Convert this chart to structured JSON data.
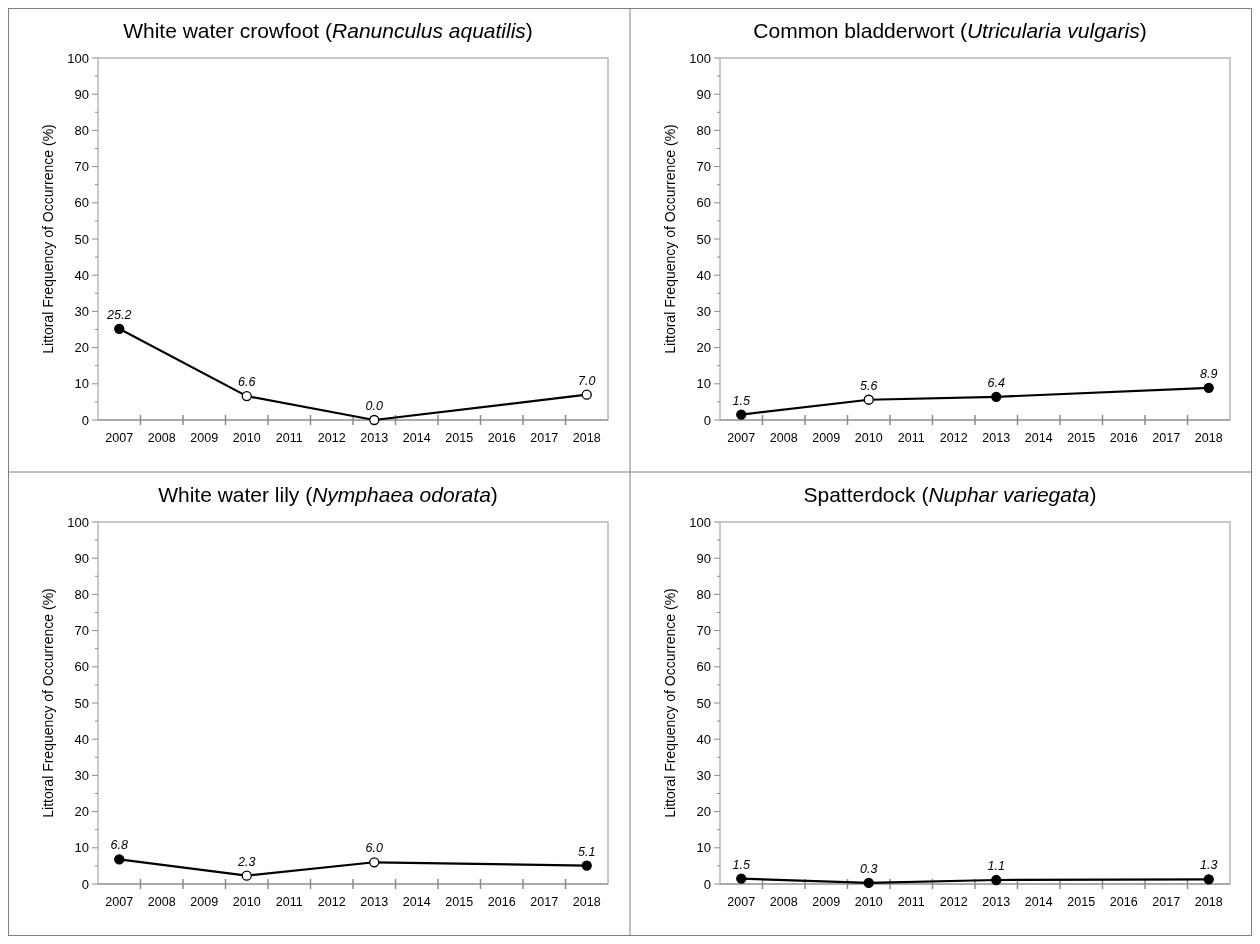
{
  "chart_data": [
    {
      "type": "line",
      "title": "White water crowfoot (Ranunculus aquatilis)",
      "ylabel": "Littoral Frequency of Occurrence (%)",
      "categories": [
        "2007",
        "2008",
        "2009",
        "2010",
        "2011",
        "2012",
        "2013",
        "2014",
        "2015",
        "2016",
        "2017",
        "2018"
      ],
      "series": [
        {
          "color": "#000000",
          "colors": [
            "#000000",
            null,
            null,
            "#ffffff",
            null,
            null,
            "#ffffff",
            null,
            null,
            null,
            null,
            "#ffffff"
          ],
          "values": [
            25.2,
            null,
            null,
            6.6,
            null,
            null,
            0,
            null,
            null,
            null,
            null,
            7.0
          ],
          "value_labels": [
            "25.2",
            null,
            null,
            "6.6",
            null,
            null,
            "0.0",
            null,
            null,
            null,
            null,
            "7.0"
          ]
        }
      ],
      "ylim": [
        0,
        100
      ],
      "yticks": [
        0,
        {
          "value": 5,
          "label": null
        },
        10,
        {
          "value": 15,
          "label": null
        },
        20,
        {
          "value": 25,
          "label": null
        },
        30,
        {
          "value": 35,
          "label": null
        },
        40,
        {
          "value": 45,
          "label": null
        },
        50,
        {
          "value": 55,
          "label": null
        },
        60,
        {
          "value": 65,
          "label": null
        },
        70,
        {
          "value": 75,
          "label": null
        },
        80,
        {
          "value": 85,
          "label": null
        },
        90,
        {
          "value": 95,
          "label": null
        },
        100
      ],
      "marker": "circle",
      "grid": false
    },
    {
      "type": "line",
      "title": "Common bladderwort (Utricularia vulgaris)",
      "ylabel": "Littoral Frequency of Occurrence (%)",
      "categories": [
        "2007",
        "2008",
        "2009",
        "2010",
        "2011",
        "2012",
        "2013",
        "2014",
        "2015",
        "2016",
        "2017",
        "2018"
      ],
      "series": [
        {
          "color": "#000000",
          "colors": [
            "#000000",
            null,
            null,
            "#ffffff",
            null,
            null,
            "#000000",
            null,
            null,
            null,
            null,
            "#000000"
          ],
          "values": [
            1.5,
            null,
            null,
            5.6,
            null,
            null,
            6.4,
            null,
            null,
            null,
            null,
            8.9
          ],
          "value_labels": [
            "1.5",
            null,
            null,
            "5.6",
            null,
            null,
            "6.4",
            null,
            null,
            null,
            null,
            "8.9"
          ]
        }
      ],
      "ylim": [
        0,
        100
      ],
      "yticks": [
        0,
        {
          "value": 5,
          "label": null
        },
        10,
        {
          "value": 15,
          "label": null
        },
        20,
        {
          "value": 25,
          "label": null
        },
        30,
        {
          "value": 35,
          "label": null
        },
        40,
        {
          "value": 45,
          "label": null
        },
        50,
        {
          "value": 55,
          "label": null
        },
        60,
        {
          "value": 65,
          "label": null
        },
        70,
        {
          "value": 75,
          "label": null
        },
        80,
        {
          "value": 85,
          "label": null
        },
        90,
        {
          "value": 95,
          "label": null
        },
        100
      ],
      "marker": "circle",
      "grid": false
    },
    {
      "type": "line",
      "title": "White water lily (Nymphaea odorata)",
      "ylabel": "Littoral Frequency of Occurrence (%)",
      "categories": [
        "2007",
        "2008",
        "2009",
        "2010",
        "2011",
        "2012",
        "2013",
        "2014",
        "2015",
        "2016",
        "2017",
        "2018"
      ],
      "series": [
        {
          "color": "#000000",
          "colors": [
            "#000000",
            null,
            null,
            "#ffffff",
            null,
            null,
            "#ffffff",
            null,
            null,
            null,
            null,
            "#000000"
          ],
          "values": [
            6.8,
            null,
            null,
            2.3,
            null,
            null,
            6.0,
            null,
            null,
            null,
            null,
            5.1
          ],
          "value_labels": [
            "6.8",
            null,
            null,
            "2.3",
            null,
            null,
            "6.0",
            null,
            null,
            null,
            null,
            "5.1"
          ]
        }
      ],
      "ylim": [
        0,
        100
      ],
      "yticks": [
        0,
        {
          "value": 5,
          "label": null
        },
        10,
        {
          "value": 15,
          "label": null
        },
        20,
        {
          "value": 25,
          "label": null
        },
        30,
        {
          "value": 35,
          "label": null
        },
        40,
        {
          "value": 45,
          "label": null
        },
        50,
        {
          "value": 55,
          "label": null
        },
        60,
        {
          "value": 65,
          "label": null
        },
        70,
        {
          "value": 75,
          "label": null
        },
        80,
        {
          "value": 85,
          "label": null
        },
        90,
        {
          "value": 95,
          "label": null
        },
        100
      ],
      "marker": "circle",
      "grid": false
    },
    {
      "type": "line",
      "title": "Spatterdock (Nuphar variegata)",
      "ylabel": "Littoral Frequency of Occurrence (%)",
      "categories": [
        "2007",
        "2008",
        "2009",
        "2010",
        "2011",
        "2012",
        "2013",
        "2014",
        "2015",
        "2016",
        "2017",
        "2018"
      ],
      "series": [
        {
          "color": "#000000",
          "colors": [
            "#000000",
            null,
            null,
            "#000000",
            null,
            null,
            "#000000",
            null,
            null,
            null,
            null,
            "#000000"
          ],
          "values": [
            1.5,
            null,
            null,
            0.3,
            null,
            null,
            1.1,
            null,
            null,
            null,
            null,
            1.3
          ],
          "value_labels": [
            "1.5",
            null,
            null,
            "0.3",
            null,
            null,
            "1.1",
            null,
            null,
            null,
            null,
            "1.3"
          ]
        }
      ],
      "ylim": [
        0,
        100
      ],
      "yticks": [
        0,
        {
          "value": 5,
          "label": null
        },
        10,
        {
          "value": 15,
          "label": null
        },
        20,
        {
          "value": 25,
          "label": null
        },
        30,
        {
          "value": 35,
          "label": null
        },
        40,
        {
          "value": 45,
          "label": null
        },
        50,
        {
          "value": 55,
          "label": null
        },
        60,
        {
          "value": 65,
          "label": null
        },
        70,
        {
          "value": 75,
          "label": null
        },
        80,
        {
          "value": 85,
          "label": null
        },
        90,
        {
          "value": 95,
          "label": null
        },
        100
      ],
      "marker": "circle",
      "grid": false
    }
  ]
}
